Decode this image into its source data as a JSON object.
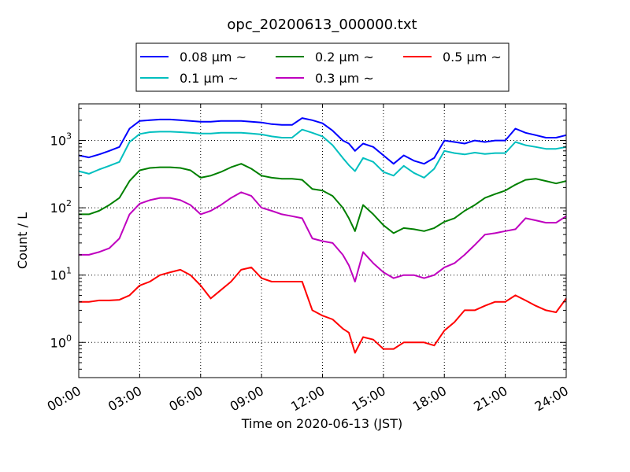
{
  "chart_data": {
    "type": "line",
    "title": "opc_20200613_000000.txt",
    "xlabel": "Time on 2020-06-13 (JST)",
    "ylabel": "Count / L",
    "y_scale": "log",
    "xlim": [
      0,
      24
    ],
    "ylim": [
      0.3,
      3500
    ],
    "x_ticks": [
      {
        "value": 0,
        "label": "00:00"
      },
      {
        "value": 3,
        "label": "03:00"
      },
      {
        "value": 6,
        "label": "06:00"
      },
      {
        "value": 9,
        "label": "09:00"
      },
      {
        "value": 12,
        "label": "12:00"
      },
      {
        "value": 15,
        "label": "15:00"
      },
      {
        "value": 18,
        "label": "18:00"
      },
      {
        "value": 21,
        "label": "21:00"
      },
      {
        "value": 24,
        "label": "24:00"
      }
    ],
    "y_ticks": [
      {
        "value": 1,
        "base": "10",
        "exp": "0"
      },
      {
        "value": 10,
        "base": "10",
        "exp": "1"
      },
      {
        "value": 100,
        "base": "10",
        "exp": "2"
      },
      {
        "value": 1000,
        "base": "10",
        "exp": "3"
      }
    ],
    "grid": true,
    "legend_position": "top-center",
    "x": [
      0,
      0.5,
      1,
      1.5,
      2,
      2.5,
      3,
      3.5,
      4,
      4.5,
      5,
      5.5,
      6,
      6.5,
      7,
      7.5,
      8,
      8.5,
      9,
      9.5,
      10,
      10.5,
      11,
      11.5,
      12,
      12.5,
      13,
      13.3,
      13.6,
      14,
      14.5,
      15,
      15.5,
      16,
      16.5,
      17,
      17.5,
      18,
      18.5,
      19,
      19.5,
      20,
      20.5,
      21,
      21.5,
      22,
      22.5,
      23,
      23.5,
      24
    ],
    "series": [
      {
        "name": "0.08 μm ~",
        "color": "#0000ff",
        "values": [
          600,
          560,
          620,
          700,
          800,
          1500,
          1950,
          2000,
          2050,
          2050,
          2000,
          1950,
          1900,
          1900,
          1950,
          1950,
          1950,
          1900,
          1850,
          1750,
          1700,
          1700,
          2150,
          2000,
          1800,
          1400,
          1000,
          900,
          700,
          900,
          800,
          600,
          450,
          600,
          500,
          450,
          550,
          1000,
          950,
          900,
          1000,
          950,
          1000,
          1000,
          1500,
          1300,
          1200,
          1100,
          1100,
          1200
        ]
      },
      {
        "name": "0.1 μm ~",
        "color": "#00bfbf",
        "values": [
          350,
          320,
          370,
          420,
          480,
          950,
          1250,
          1330,
          1350,
          1350,
          1330,
          1300,
          1270,
          1270,
          1300,
          1300,
          1300,
          1270,
          1230,
          1150,
          1100,
          1100,
          1450,
          1300,
          1150,
          850,
          550,
          430,
          350,
          550,
          480,
          340,
          300,
          420,
          330,
          280,
          380,
          700,
          650,
          620,
          660,
          630,
          650,
          650,
          950,
          850,
          800,
          750,
          750,
          800
        ]
      },
      {
        "name": "0.2 μm ~",
        "color": "#008000",
        "values": [
          80,
          80,
          90,
          110,
          140,
          250,
          360,
          390,
          400,
          400,
          390,
          360,
          280,
          300,
          340,
          400,
          450,
          380,
          300,
          280,
          270,
          270,
          260,
          190,
          180,
          150,
          100,
          70,
          45,
          110,
          80,
          55,
          42,
          50,
          48,
          45,
          50,
          62,
          70,
          90,
          110,
          140,
          160,
          180,
          220,
          260,
          270,
          250,
          230,
          250
        ]
      },
      {
        "name": "0.3 μm ~",
        "color": "#bf00bf",
        "values": [
          20,
          20,
          22,
          25,
          35,
          80,
          115,
          130,
          140,
          140,
          130,
          110,
          80,
          90,
          110,
          140,
          170,
          150,
          100,
          90,
          80,
          75,
          70,
          35,
          32,
          30,
          20,
          14,
          8,
          22,
          15,
          11,
          9,
          10,
          10,
          9,
          10,
          13,
          15,
          20,
          28,
          40,
          42,
          45,
          48,
          70,
          65,
          60,
          60,
          75
        ]
      },
      {
        "name": "0.5 μm ~",
        "color": "#ff0000",
        "values": [
          4,
          4,
          4.2,
          4.2,
          4.3,
          5,
          7,
          8,
          10,
          11,
          12,
          10,
          7,
          4.5,
          6,
          8,
          12,
          13,
          9,
          8,
          8,
          8,
          8,
          3,
          2.5,
          2.2,
          1.6,
          1.4,
          0.7,
          1.2,
          1.1,
          0.8,
          0.8,
          1,
          1,
          1,
          0.9,
          1.5,
          2,
          3,
          3,
          3.5,
          4,
          4,
          5,
          4.2,
          3.5,
          3,
          2.8,
          4.5
        ]
      }
    ]
  }
}
